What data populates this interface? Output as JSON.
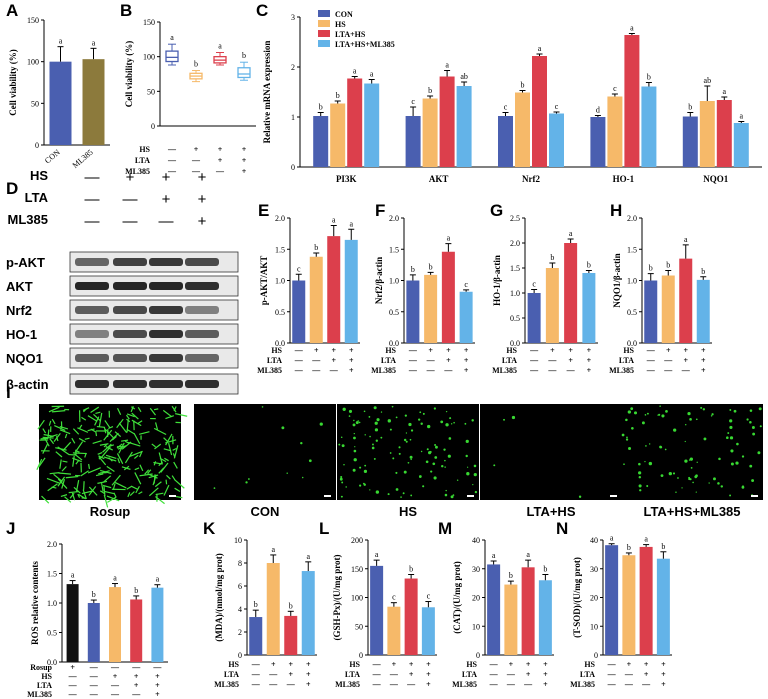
{
  "panel_labels": [
    "A",
    "B",
    "C",
    "D",
    "E",
    "F",
    "G",
    "H",
    "I",
    "J",
    "K",
    "L",
    "M",
    "N"
  ],
  "colors": {
    "blue": "#4a5fb0",
    "orange": "#f6b969",
    "red": "#dc3f4c",
    "lightblue": "#63b3e8",
    "olive": "#8c7a3c",
    "black": "#111111"
  },
  "condition_rows": {
    "HS": "HS",
    "LTA": "LTA",
    "ML385": "ML385",
    "Rosup": "Rosup",
    "minus": "—",
    "plus": "+"
  },
  "chart_data": [
    {
      "id": "A",
      "type": "bar",
      "ylabel": "Cell viability (%)",
      "categories": [
        "CON",
        "ML385"
      ],
      "values": [
        100,
        103
      ],
      "errors": [
        18,
        13
      ],
      "sig": [
        "a",
        "a"
      ],
      "ylim": [
        0,
        150
      ],
      "yticks": [
        "0",
        "50",
        "100",
        "150"
      ],
      "colors": [
        "#4a5fb0",
        "#8c7a3c"
      ]
    },
    {
      "id": "B",
      "type": "box",
      "ylabel": "Cell viability (%)",
      "ylim": [
        0,
        150
      ],
      "yticks": [
        "0",
        "50",
        "100",
        "150"
      ],
      "boxes": [
        {
          "min": 88,
          "q1": 93,
          "median": 99,
          "q3": 108,
          "max": 118,
          "color": "#4a5fb0",
          "sig": "a"
        },
        {
          "min": 64,
          "q1": 68,
          "median": 72,
          "q3": 76,
          "max": 80,
          "color": "#f6b969",
          "sig": "b"
        },
        {
          "min": 88,
          "q1": 91,
          "median": 95,
          "q3": 100,
          "max": 106,
          "color": "#dc3f4c",
          "sig": "a"
        },
        {
          "min": 66,
          "q1": 70,
          "median": 75,
          "q3": 84,
          "max": 92,
          "color": "#63b3e8",
          "sig": "b"
        }
      ],
      "rows": [
        {
          "name": "HS",
          "marks": [
            "—",
            "+",
            "+",
            "+"
          ]
        },
        {
          "name": "LTA",
          "marks": [
            "—",
            "—",
            "+",
            "+"
          ]
        },
        {
          "name": "ML385",
          "marks": [
            "—",
            "—",
            "—",
            "+"
          ]
        }
      ]
    },
    {
      "id": "C",
      "type": "grouped_bar",
      "ylabel": "Relative mRNA expression",
      "ylim": [
        0,
        3
      ],
      "yticks": [
        "0",
        "1",
        "2",
        "3"
      ],
      "categories": [
        "PI3K",
        "AKT",
        "Nrf2",
        "HO-1",
        "NQO1"
      ],
      "legend": [
        "CON",
        "HS",
        "LTA+HS",
        "LTA+HS+ML385"
      ],
      "series": [
        {
          "name": "CON",
          "values": [
            1.02,
            1.02,
            1.02,
            1.0,
            1.01
          ],
          "errors": [
            0.07,
            0.18,
            0.07,
            0.03,
            0.08
          ],
          "sig": [
            "b",
            "c",
            "c",
            "d",
            "b"
          ]
        },
        {
          "name": "HS",
          "values": [
            1.27,
            1.37,
            1.49,
            1.41,
            1.32
          ],
          "errors": [
            0.05,
            0.05,
            0.04,
            0.05,
            0.3
          ],
          "sig": [
            "b",
            "b",
            "b",
            "c",
            "ab"
          ]
        },
        {
          "name": "LTA+HS",
          "values": [
            1.77,
            1.81,
            2.22,
            2.64,
            1.34
          ],
          "errors": [
            0.04,
            0.12,
            0.04,
            0.03,
            0.06
          ],
          "sig": [
            "a",
            "a",
            "a",
            "a",
            "a"
          ]
        },
        {
          "name": "LTA+HS+ML385",
          "values": [
            1.67,
            1.62,
            1.07,
            1.61,
            0.88
          ],
          "errors": [
            0.08,
            0.08,
            0.03,
            0.08,
            0.03
          ],
          "sig": [
            "a",
            "ab",
            "c",
            "b",
            "a"
          ]
        }
      ]
    },
    {
      "id": "E",
      "type": "bar",
      "ylabel": "p-AKT/AKT",
      "ylim": [
        0,
        2.0
      ],
      "yticks": [
        "0.0",
        "0.5",
        "1.0",
        "1.5",
        "2.0"
      ],
      "values": [
        1.0,
        1.38,
        1.71,
        1.65
      ],
      "errors": [
        0.1,
        0.06,
        0.17,
        0.17
      ],
      "sig": [
        "c",
        "b",
        "a",
        "a"
      ]
    },
    {
      "id": "F",
      "type": "bar",
      "ylabel": "Nrf2/β-actin",
      "ylim": [
        0,
        2.0
      ],
      "yticks": [
        "0.0",
        "0.5",
        "1.0",
        "1.5",
        "2.0"
      ],
      "values": [
        1.0,
        1.09,
        1.46,
        0.82
      ],
      "errors": [
        0.09,
        0.04,
        0.13,
        0.03
      ],
      "sig": [
        "b",
        "b",
        "a",
        "c"
      ]
    },
    {
      "id": "G",
      "type": "bar",
      "ylabel": "HO-1/β-actin",
      "ylim": [
        0,
        2.5
      ],
      "yticks": [
        "0.0",
        "0.5",
        "1.0",
        "1.5",
        "2.0",
        "2.5"
      ],
      "values": [
        1.0,
        1.5,
        2.0,
        1.4
      ],
      "errors": [
        0.07,
        0.1,
        0.08,
        0.05
      ],
      "sig": [
        "c",
        "b",
        "a",
        "b"
      ]
    },
    {
      "id": "H",
      "type": "bar",
      "ylabel": "NQO1/β-actin",
      "ylim": [
        0,
        2.0
      ],
      "yticks": [
        "0.0",
        "0.5",
        "1.0",
        "1.5",
        "2.0"
      ],
      "values": [
        1.0,
        1.08,
        1.35,
        1.01
      ],
      "errors": [
        0.11,
        0.08,
        0.22,
        0.05
      ],
      "sig": [
        "b",
        "b",
        "a",
        "b"
      ]
    },
    {
      "id": "J",
      "type": "bar",
      "ylabel": "ROS relative contents",
      "ylim": [
        0,
        2.0
      ],
      "yticks": [
        "0.0",
        "0.5",
        "1.0",
        "1.5",
        "2.0"
      ],
      "values": [
        1.32,
        1.0,
        1.27,
        1.06,
        1.26
      ],
      "errors": [
        0.06,
        0.05,
        0.06,
        0.06,
        0.05
      ],
      "sig": [
        "a",
        "b",
        "a",
        "b",
        "a"
      ],
      "colors": [
        "#111111",
        "#4a5fb0",
        "#f6b969",
        "#dc3f4c",
        "#63b3e8"
      ],
      "rows": [
        {
          "name": "Rosup",
          "marks": [
            "+",
            "—",
            "—",
            "—",
            "—"
          ]
        },
        {
          "name": "HS",
          "marks": [
            "—",
            "—",
            "+",
            "+",
            "+"
          ]
        },
        {
          "name": "LTA",
          "marks": [
            "—",
            "—",
            "—",
            "+",
            "+"
          ]
        },
        {
          "name": "ML385",
          "marks": [
            "—",
            "—",
            "—",
            "—",
            "+"
          ]
        }
      ]
    },
    {
      "id": "K",
      "type": "bar",
      "ylabel": "(MDA)/(nmol/mg prot)",
      "ylim": [
        0,
        10
      ],
      "yticks": [
        "0",
        "2",
        "4",
        "6",
        "8",
        "10"
      ],
      "values": [
        3.3,
        8.0,
        3.4,
        7.3
      ],
      "errors": [
        0.6,
        0.7,
        0.4,
        0.8
      ],
      "sig": [
        "b",
        "a",
        "b",
        "a"
      ]
    },
    {
      "id": "L",
      "type": "bar",
      "ylabel": "(GSH-Px)/(U/mg prot)",
      "ylim": [
        0,
        200
      ],
      "yticks": [
        "0",
        "50",
        "100",
        "150",
        "200"
      ],
      "values": [
        155,
        84,
        133,
        83
      ],
      "errors": [
        10,
        7,
        7,
        10
      ],
      "sig": [
        "a",
        "c",
        "b",
        "c"
      ]
    },
    {
      "id": "M",
      "type": "bar",
      "ylabel": "(CAT)/(U/mg prot)",
      "ylim": [
        0,
        40
      ],
      "yticks": [
        "0",
        "10",
        "20",
        "30",
        "40"
      ],
      "values": [
        31.5,
        24.5,
        30.5,
        26.0
      ],
      "errors": [
        1.2,
        1.2,
        2.5,
        2.0
      ],
      "sig": [
        "a",
        "b",
        "a",
        "b"
      ]
    },
    {
      "id": "N",
      "type": "bar",
      "ylabel": "(T-SOD)/(U/mg prot)",
      "ylim": [
        0,
        40
      ],
      "yticks": [
        "0",
        "10",
        "20",
        "30",
        "40"
      ],
      "values": [
        38.2,
        34.7,
        37.6,
        33.5
      ],
      "errors": [
        0.5,
        0.8,
        0.8,
        2.4
      ],
      "sig": [
        "a",
        "b",
        "a",
        "b"
      ]
    }
  ],
  "standard_rows": [
    {
      "name": "HS",
      "marks": [
        "—",
        "+",
        "+",
        "+"
      ]
    },
    {
      "name": "LTA",
      "marks": [
        "—",
        "—",
        "+",
        "+"
      ]
    },
    {
      "name": "ML385",
      "marks": [
        "—",
        "—",
        "—",
        "+"
      ]
    }
  ],
  "western_blot": {
    "header_rows": [
      {
        "name": "HS",
        "marks": [
          "—",
          "+",
          "+",
          "+"
        ]
      },
      {
        "name": "LTA",
        "marks": [
          "—",
          "—",
          "+",
          "+"
        ]
      },
      {
        "name": "ML385",
        "marks": [
          "—",
          "—",
          "—",
          "+"
        ]
      }
    ],
    "bands": [
      "p-AKT",
      "AKT",
      "Nrf2",
      "HO-1",
      "NQO1",
      "β-actin"
    ]
  },
  "fluorescence": {
    "captions": [
      "Rosup",
      "CON",
      "HS",
      "LTA+HS",
      "LTA+HS+ML385"
    ],
    "intensity": [
      0.9,
      0.04,
      0.45,
      0.015,
      0.35
    ]
  }
}
